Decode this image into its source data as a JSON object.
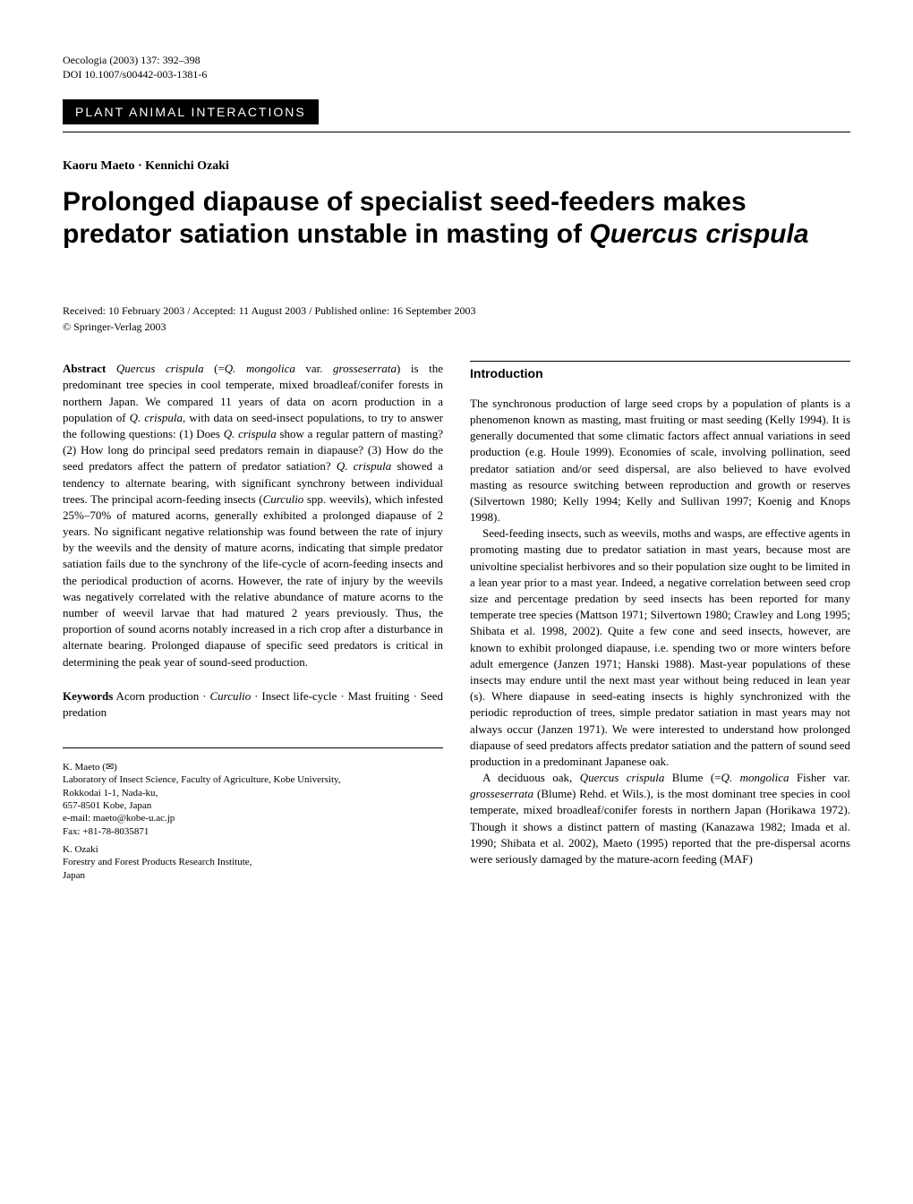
{
  "journal": {
    "citation": "Oecologia (2003) 137: 392–398",
    "doi": "DOI 10.1007/s00442-003-1381-6"
  },
  "section_category": "PLANT ANIMAL INTERACTIONS",
  "authors": "Kaoru Maeto · Kennichi Ozaki",
  "title_part1": "Prolonged diapause of specialist seed-feeders makes predator satiation unstable in masting of ",
  "title_species": "Quercus crispula",
  "dates": {
    "received": "Received: 10 February 2003 / Accepted: 11 August 2003 / Published online: 16 September 2003",
    "copyright": "© Springer-Verlag 2003"
  },
  "abstract": {
    "label": "Abstract",
    "text_1": " Quercus crispula",
    "text_2": " (=Q. mongolica",
    "text_3": " var. ",
    "text_4": "grosseserrata",
    "text_5": ") is the predominant tree species in cool temperate, mixed broadleaf/conifer forests in northern Japan. We compared 11 years of data on acorn production in a population of ",
    "text_6": "Q. crispula",
    "text_7": ", with data on seed-insect populations, to try to answer the following questions: (1) Does ",
    "text_8": "Q. crispula",
    "text_9": " show a regular pattern of masting? (2) How long do principal seed predators remain in diapause? (3) How do the seed predators affect the pattern of predator satiation? ",
    "text_10": "Q. crispula",
    "text_11": " showed a tendency to alternate bearing, with significant synchrony between individual trees. The principal acorn-feeding insects (",
    "text_12": "Curculio",
    "text_13": " spp. weevils), which infested 25%–70% of matured acorns, generally exhibited a prolonged diapause of 2 years. No significant negative relationship was found between the rate of injury by the weevils and the density of mature acorns, indicating that simple predator satiation fails due to the synchrony of the life-cycle of acorn-feeding insects and the periodical production of acorns. However, the rate of injury by the weevils was negatively correlated with the relative abundance of mature acorns to the number of weevil larvae that had matured 2 years previously. Thus, the proportion of sound acorns notably increased in a rich crop after a disturbance in alternate bearing. Prolonged diapause of specific seed predators is critical in determining the peak year of sound-seed production."
  },
  "keywords": {
    "label": "Keywords",
    "text": " Acorn production · Curculio · Insect life-cycle · Mast fruiting · Seed predation"
  },
  "affiliations": {
    "author1_name": "K. Maeto (✉)",
    "author1_affil": "Laboratory of Insect Science, Faculty of Agriculture, Kobe University,",
    "author1_addr1": "Rokkodai 1-1, Nada-ku,",
    "author1_addr2": "657-8501 Kobe, Japan",
    "author1_email": "e-mail: maeto@kobe-u.ac.jp",
    "author1_fax": "Fax: +81-78-8035871",
    "author2_name": "K. Ozaki",
    "author2_affil": "Forestry and Forest Products Research Institute,",
    "author2_addr": "Japan"
  },
  "introduction": {
    "heading": "Introduction",
    "para1": "The synchronous production of large seed crops by a population of plants is a phenomenon known as masting, mast fruiting or mast seeding (Kelly 1994). It is generally documented that some climatic factors affect annual variations in seed production (e.g. Houle 1999). Economies of scale, involving pollination, seed predator satiation and/or seed dispersal, are also believed to have evolved masting as resource switching between reproduction and growth or reserves (Silvertown 1980; Kelly 1994; Kelly and Sullivan 1997; Koenig and Knops 1998).",
    "para2": "Seed-feeding insects, such as weevils, moths and wasps, are effective agents in promoting masting due to predator satiation in mast years, because most are univoltine specialist herbivores and so their population size ought to be limited in a lean year prior to a mast year. Indeed, a negative correlation between seed crop size and percentage predation by seed insects has been reported for many temperate tree species (Mattson 1971; Silvertown 1980; Crawley and Long 1995; Shibata et al. 1998, 2002). Quite a few cone and seed insects, however, are known to exhibit prolonged diapause, i.e. spending two or more winters before adult emergence (Janzen 1971; Hanski 1988). Mast-year populations of these insects may endure until the next mast year without being reduced in lean year (s). Where diapause in seed-eating insects is highly synchronized with the periodic reproduction of trees, simple predator satiation in mast years may not always occur (Janzen 1971). We were interested to understand how prolonged diapause of seed predators affects predator satiation and the pattern of sound seed production in a predominant Japanese oak.",
    "para3_1": "A deciduous oak, ",
    "para3_2": "Quercus crispula",
    "para3_3": " Blume (=",
    "para3_4": "Q. mongolica",
    "para3_5": " Fisher var. ",
    "para3_6": "grosseserrata",
    "para3_7": " (Blume) Rehd. et Wils.), is the most dominant tree species in cool temperate, mixed broadleaf/conifer forests in northern Japan (Horikawa 1972). Though it shows a distinct pattern of masting (Kanazawa 1982; Imada et al. 1990; Shibata et al. 2002), Maeto (1995) reported that the pre-dispersal acorns were seriously damaged by the mature-acorn feeding (MAF)"
  }
}
